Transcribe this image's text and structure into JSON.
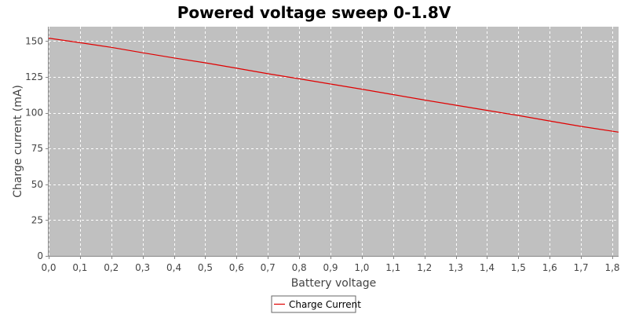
{
  "chart_data": {
    "type": "line",
    "title": "Powered voltage sweep 0-1.8V",
    "xlabel": "Battery voltage",
    "ylabel": "Charge current (mA)",
    "xlim": [
      0.0,
      1.82
    ],
    "ylim": [
      0,
      160
    ],
    "x_ticks": [
      0.0,
      0.1,
      0.2,
      0.3,
      0.4,
      0.5,
      0.6,
      0.7,
      0.8,
      0.9,
      1.0,
      1.1,
      1.2,
      1.3,
      1.4,
      1.5,
      1.6,
      1.7,
      1.8
    ],
    "x_tick_labels": [
      "0,0",
      "0,1",
      "0,2",
      "0,3",
      "0,4",
      "0,5",
      "0,6",
      "0,7",
      "0,8",
      "0,9",
      "1,0",
      "1,1",
      "1,2",
      "1,3",
      "1,4",
      "1,5",
      "1,6",
      "1,7",
      "1,8"
    ],
    "y_ticks": [
      0,
      25,
      50,
      75,
      100,
      125,
      150
    ],
    "y_tick_labels": [
      "0",
      "25",
      "50",
      "75",
      "100",
      "125",
      "150"
    ],
    "grid": true,
    "legend_position": "bottom-center",
    "series": [
      {
        "name": "Charge Current",
        "color": "#e00000",
        "x": [
          0.0,
          0.1,
          0.2,
          0.3,
          0.4,
          0.5,
          0.6,
          0.7,
          0.8,
          0.9,
          1.0,
          1.1,
          1.2,
          1.3,
          1.4,
          1.5,
          1.6,
          1.7,
          1.82
        ],
        "y": [
          152.0,
          148.8,
          145.6,
          141.8,
          138.2,
          134.8,
          131.0,
          127.2,
          123.6,
          120.0,
          116.4,
          112.6,
          108.8,
          105.2,
          101.6,
          98.0,
          94.2,
          90.4,
          86.4
        ]
      }
    ],
    "colors": {
      "plot_background": "#c0c0c0",
      "gridline": "#ffffff",
      "axis": "#888888"
    }
  }
}
